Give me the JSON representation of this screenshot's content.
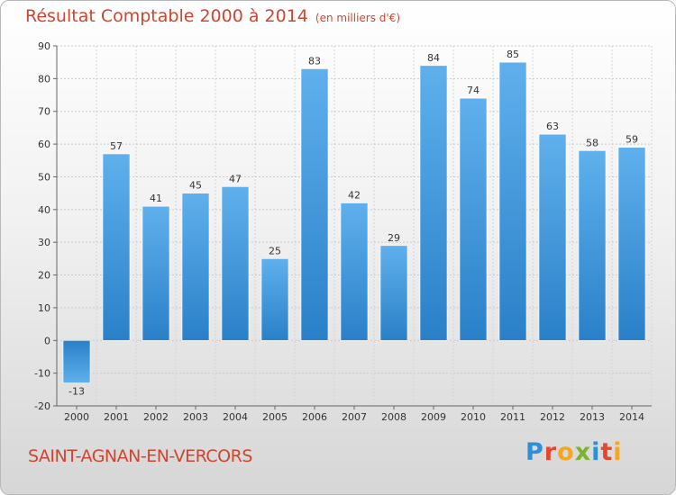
{
  "header": {
    "title": "Résultat Comptable 2000 à 2014",
    "subtitle": "(en milliers d'€)"
  },
  "footer": {
    "town": "SAINT-AGNAN-EN-VERCORS",
    "logo_letters": [
      {
        "ch": "P",
        "color": "#2f8fd6"
      },
      {
        "ch": "r",
        "color": "#e6462e"
      },
      {
        "ch": "o",
        "color": "#f5a623"
      },
      {
        "ch": "x",
        "color": "#7ab32e"
      },
      {
        "ch": "i",
        "color": "#2f8fd6"
      },
      {
        "ch": "t",
        "color": "#e6462e"
      },
      {
        "ch": "i",
        "color": "#f5a623"
      }
    ]
  },
  "chart_data": {
    "type": "bar",
    "title": "Résultat Comptable 2000 à 2014",
    "subtitle": "(en milliers d'€)",
    "categories": [
      "2000",
      "2001",
      "2002",
      "2003",
      "2004",
      "2005",
      "2006",
      "2007",
      "2008",
      "2009",
      "2010",
      "2011",
      "2012",
      "2013",
      "2014"
    ],
    "values": [
      -13,
      57,
      41,
      45,
      47,
      25,
      83,
      42,
      29,
      84,
      74,
      85,
      63,
      58,
      59
    ],
    "ylim": [
      -20,
      90
    ],
    "yticks": [
      -20,
      -10,
      0,
      10,
      20,
      30,
      40,
      50,
      60,
      70,
      80,
      90
    ],
    "grid": true,
    "bar_color": "#3d95d9"
  }
}
